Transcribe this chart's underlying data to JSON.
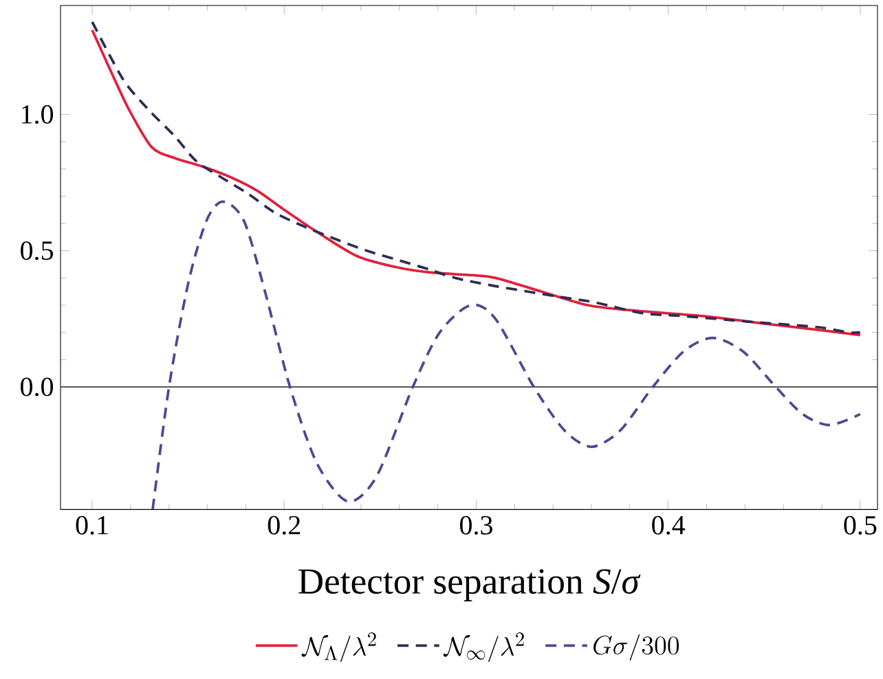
{
  "chart_data": {
    "type": "line",
    "xlabel": "Detector separation  *S*/*σ*",
    "xlim": [
      0.0835,
      0.509
    ],
    "ylim": [
      -0.45,
      1.4
    ],
    "xticks": [
      0.1,
      0.2,
      0.3,
      0.4,
      0.5
    ],
    "yticks": [
      {
        "value": 0.0,
        "label": "0.0"
      },
      {
        "value": 0.5,
        "label": "0.5"
      },
      {
        "value": 1.0,
        "label": "1.0"
      }
    ],
    "legend": "bottom",
    "grid": false,
    "ref_lines": [
      {
        "axis": "y",
        "value": 0,
        "color": "#555555"
      }
    ],
    "series": [
      {
        "name": "\\mathcal{N}_\\Lambda/\\lambda^2",
        "color": "#e0203c",
        "line_style": "solid",
        "x": [
          0.1,
          0.109,
          0.119,
          0.131,
          0.143,
          0.157,
          0.172,
          0.186,
          0.2,
          0.219,
          0.238,
          0.258,
          0.276,
          0.298,
          0.31,
          0.334,
          0.358,
          0.382,
          0.418,
          0.453,
          0.477,
          0.5
        ],
        "values": [
          1.31,
          1.17,
          1.02,
          0.88,
          0.84,
          0.81,
          0.77,
          0.72,
          0.65,
          0.56,
          0.48,
          0.44,
          0.42,
          0.41,
          0.4,
          0.35,
          0.3,
          0.28,
          0.26,
          0.23,
          0.21,
          0.19
        ]
      },
      {
        "name": "\\mathcal{N}_\\infty/\\lambda^2",
        "color": "#2e2c52",
        "line_style": "dashed",
        "x": [
          0.1,
          0.116,
          0.129,
          0.143,
          0.154,
          0.167,
          0.181,
          0.195,
          0.21,
          0.224,
          0.243,
          0.262,
          0.276,
          0.289,
          0.31,
          0.344,
          0.362,
          0.387,
          0.408,
          0.441,
          0.477,
          0.494,
          0.5
        ],
        "values": [
          1.34,
          1.13,
          1.02,
          0.92,
          0.83,
          0.77,
          0.71,
          0.64,
          0.59,
          0.55,
          0.5,
          0.46,
          0.43,
          0.4,
          0.37,
          0.33,
          0.31,
          0.27,
          0.26,
          0.24,
          0.22,
          0.2,
          0.2
        ]
      },
      {
        "name": "G\\sigma/300",
        "color": "#4a4a94",
        "line_style": "dashed",
        "x": [
          0.1315,
          0.14,
          0.15,
          0.1595,
          0.168,
          0.179,
          0.19,
          0.203,
          0.217,
          0.233,
          0.248,
          0.267,
          0.281,
          0.297,
          0.31,
          0.33,
          0.346,
          0.36,
          0.375,
          0.392,
          0.408,
          0.423,
          0.439,
          0.456,
          0.47,
          0.484,
          0.5
        ],
        "values": [
          -0.45,
          0,
          0.38,
          0.61,
          0.68,
          0.61,
          0.35,
          0,
          -0.28,
          -0.42,
          -0.33,
          0,
          0.2,
          0.3,
          0.25,
          0,
          -0.16,
          -0.22,
          -0.16,
          0,
          0.13,
          0.18,
          0.13,
          0,
          -0.1,
          -0.14,
          -0.1
        ]
      }
    ]
  }
}
